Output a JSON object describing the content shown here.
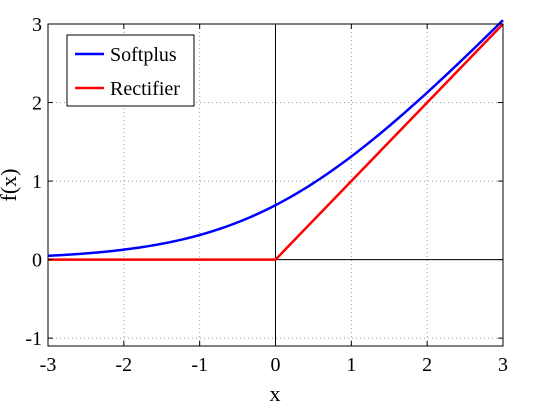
{
  "chart_data": {
    "type": "line",
    "xlabel": "x",
    "ylabel": "f(x)",
    "xlim": [
      -3,
      3
    ],
    "ylim": [
      -1.1,
      3
    ],
    "xticks": [
      -3,
      -2,
      -1,
      0,
      1,
      2,
      3
    ],
    "yticks": [
      -1,
      0,
      1,
      2,
      3
    ],
    "grid": true,
    "legend_position": "top-left",
    "series": [
      {
        "name": "Softplus",
        "color": "#0000ff",
        "x": [
          -3,
          -2.5,
          -2,
          -1.5,
          -1,
          -0.5,
          0,
          0.5,
          1,
          1.5,
          2,
          2.5,
          3
        ],
        "y": [
          0.049,
          0.079,
          0.127,
          0.201,
          0.313,
          0.474,
          0.693,
          0.974,
          1.313,
          1.701,
          2.127,
          2.579,
          3.049
        ]
      },
      {
        "name": "Rectifier",
        "color": "#ff0000",
        "x": [
          -3,
          0,
          3
        ],
        "y": [
          0,
          0,
          3
        ]
      }
    ]
  }
}
